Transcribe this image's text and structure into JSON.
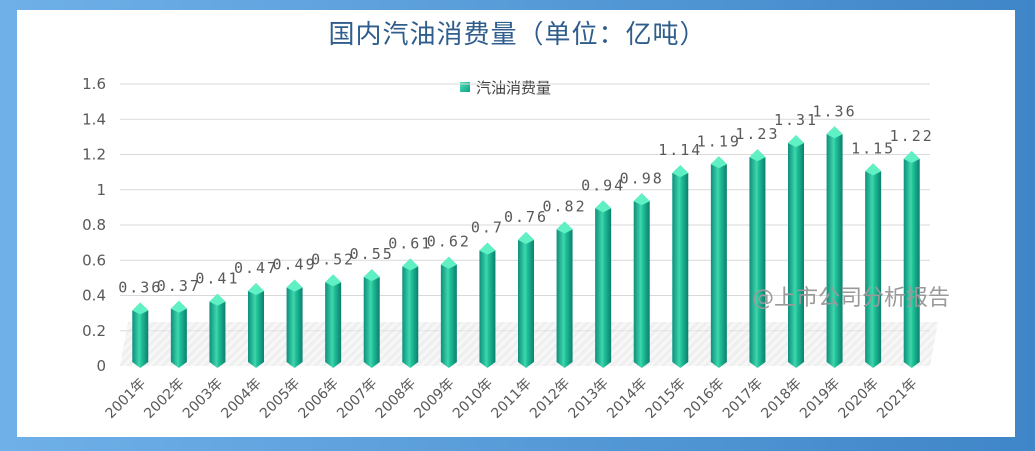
{
  "title": "国内汽油消费量（单位：亿吨）",
  "watermark": "@上市公司分析报告",
  "colors": {
    "frame": "#4b93d3",
    "bar_light": "#4de3b6",
    "bar_dark": "#0d8f7c",
    "title": "#2f5e8c"
  },
  "chart_data": {
    "type": "bar",
    "categories": [
      "2001年",
      "2002年",
      "2003年",
      "2004年",
      "2005年",
      "2006年",
      "2007年",
      "2008年",
      "2009年",
      "2010年",
      "2011年",
      "2012年",
      "2013年",
      "2014年",
      "2015年",
      "2016年",
      "2017年",
      "2018年",
      "2019年",
      "2020年",
      "2021年"
    ],
    "series": [
      {
        "name": "汽油消费量",
        "values": [
          0.36,
          0.37,
          0.41,
          0.47,
          0.49,
          0.52,
          0.55,
          0.61,
          0.62,
          0.7,
          0.76,
          0.82,
          0.94,
          0.98,
          1.14,
          1.19,
          1.23,
          1.31,
          1.36,
          1.15,
          1.22
        ]
      }
    ],
    "data_labels": [
      "0.36",
      "0.37",
      "0.41",
      "0.47",
      "0.49",
      "0.52",
      "0.55",
      "0.61",
      "0.62",
      "0.7",
      "0.76",
      "0.82",
      "0.94",
      "0.98",
      "1.14",
      "1.19",
      "1.23",
      "1.31",
      "1.36",
      "1.15",
      "1.22"
    ],
    "yticks": [
      "0",
      "0.2",
      "0.4",
      "0.6",
      "0.8",
      "1",
      "1.2",
      "1.4",
      "1.6"
    ],
    "ylim": [
      0,
      1.6
    ],
    "grid": true,
    "legend_position": "top-center"
  }
}
